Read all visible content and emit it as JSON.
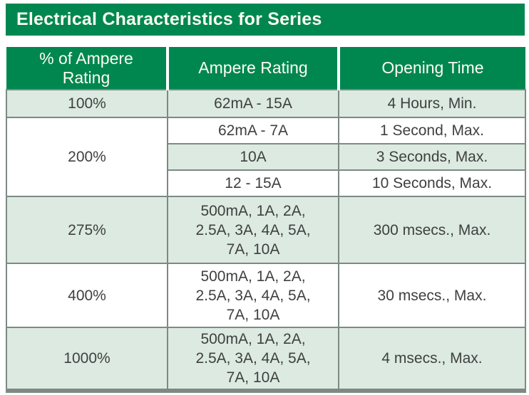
{
  "title_bar": {
    "title": "Electrical Characteristics for Series"
  },
  "colors": {
    "brand_green": "#008750",
    "row_shade_green": "#dceae1",
    "border_gray": "#7d8a84",
    "text_dark": "#3f4040",
    "header_text": "#fdfdf2"
  },
  "table": {
    "headers": {
      "percent": "% of Ampere\nRating",
      "ampere": "Ampere Rating",
      "time": "Opening Time"
    },
    "rows": [
      {
        "pct": "100%",
        "ampere": "62mA - 15A",
        "time": "4 Hours, Min."
      },
      {
        "pct": "200%",
        "ampere": "62mA - 7A",
        "time": "1 Second, Max."
      },
      {
        "ampere": "10A",
        "time": "3 Seconds, Max."
      },
      {
        "ampere": "12 - 15A",
        "time": "10 Seconds, Max."
      },
      {
        "pct": "275%",
        "ampere": "500mA, 1A, 2A,\n2.5A, 3A, 4A, 5A,\n7A, 10A",
        "time": "300 msecs., Max."
      },
      {
        "pct": "400%",
        "ampere": "500mA, 1A, 2A,\n2.5A, 3A, 4A, 5A,\n7A, 10A",
        "time": "30 msecs., Max."
      },
      {
        "pct": "1000%",
        "ampere": "500mA, 1A, 2A,\n2.5A, 3A, 4A, 5A,\n7A, 10A",
        "time": "4 msecs., Max."
      }
    ]
  }
}
